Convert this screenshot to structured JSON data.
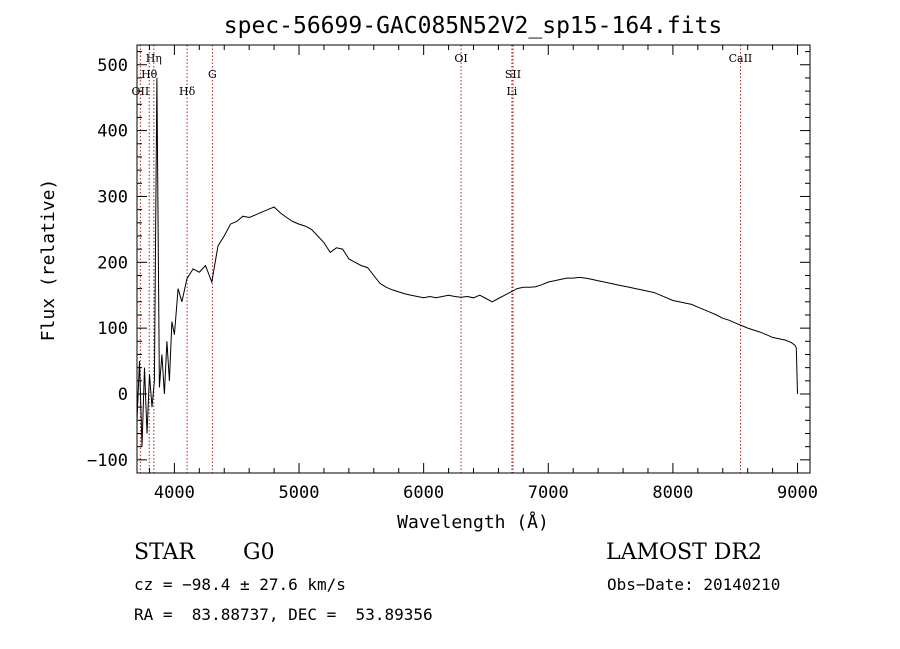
{
  "chart_data": {
    "type": "line",
    "title": "spec-56699-GAC085N52V2_sp15-164.fits",
    "xlabel": "Wavelength (Å)",
    "ylabel": "Flux (relative)",
    "xlim": [
      3700,
      9100
    ],
    "ylim": [
      -120,
      530
    ],
    "xticks": [
      4000,
      5000,
      6000,
      7000,
      8000,
      9000
    ],
    "xtick_labels": [
      "4000",
      "5000",
      "6000",
      "7000",
      "8000",
      "9000"
    ],
    "yticks": [
      -100,
      0,
      100,
      200,
      300,
      400,
      500
    ],
    "ytick_labels": [
      "−100",
      "0",
      "100",
      "200",
      "300",
      "400",
      "500"
    ],
    "grid": false,
    "line_color": "#000000",
    "marker_color": "#b22222",
    "series": [
      {
        "x": [
          3700,
          3720,
          3740,
          3760,
          3780,
          3800,
          3820,
          3840,
          3860,
          3880,
          3900,
          3920,
          3940,
          3960,
          3980,
          4000,
          4030,
          4060,
          4100,
          4150,
          4200,
          4250,
          4300,
          4350,
          4400,
          4450,
          4500,
          4550,
          4600,
          4650,
          4700,
          4750,
          4800,
          4850,
          4900,
          4950,
          5000,
          5050,
          5100,
          5150,
          5200,
          5250,
          5300,
          5350,
          5400,
          5450,
          5500,
          5550,
          5600,
          5650,
          5700,
          5750,
          5800,
          5850,
          5900,
          5950,
          6000,
          6050,
          6100,
          6150,
          6200,
          6250,
          6300,
          6350,
          6400,
          6450,
          6500,
          6550,
          6600,
          6650,
          6700,
          6750,
          6800,
          6850,
          6900,
          6950,
          7000,
          7050,
          7100,
          7150,
          7200,
          7250,
          7300,
          7350,
          7400,
          7450,
          7500,
          7550,
          7600,
          7650,
          7700,
          7750,
          7800,
          7850,
          7900,
          7950,
          8000,
          8050,
          8100,
          8150,
          8200,
          8250,
          8300,
          8350,
          8400,
          8450,
          8500,
          8550,
          8600,
          8650,
          8700,
          8750,
          8800,
          8850,
          8900,
          8950,
          8980,
          8990,
          9000
        ],
        "y": [
          -40,
          50,
          -80,
          40,
          -60,
          30,
          -20,
          20,
          480,
          10,
          60,
          0,
          80,
          20,
          110,
          90,
          160,
          140,
          175,
          190,
          185,
          195,
          170,
          225,
          240,
          258,
          262,
          270,
          268,
          272,
          276,
          280,
          284,
          275,
          268,
          262,
          258,
          255,
          250,
          240,
          230,
          215,
          222,
          220,
          205,
          200,
          195,
          192,
          180,
          168,
          162,
          158,
          155,
          152,
          150,
          148,
          146,
          148,
          146,
          148,
          150,
          148,
          147,
          148,
          146,
          150,
          145,
          140,
          145,
          150,
          155,
          160,
          162,
          162,
          163,
          166,
          170,
          172,
          174,
          176,
          176,
          177,
          176,
          174,
          172,
          170,
          168,
          166,
          164,
          162,
          160,
          158,
          156,
          154,
          150,
          146,
          142,
          140,
          138,
          136,
          132,
          128,
          124,
          120,
          115,
          112,
          108,
          104,
          100,
          97,
          94,
          90,
          86,
          84,
          82,
          78,
          74,
          70,
          0
        ]
      }
    ],
    "lines": [
      {
        "label": "OII",
        "x": 3727,
        "row": 3
      },
      {
        "label": "Hθ",
        "x": 3798,
        "row": 2
      },
      {
        "label": "Hη",
        "x": 3835,
        "row": 1
      },
      {
        "label": "Hδ",
        "x": 4102,
        "row": 3
      },
      {
        "label": "G",
        "x": 4305,
        "row": 2
      },
      {
        "label": "OI",
        "x": 6300,
        "row": 1
      },
      {
        "label": "SII",
        "x": 6717,
        "row": 2
      },
      {
        "label": "Li",
        "x": 6708,
        "row": 3
      },
      {
        "label": "CaII",
        "x": 8542,
        "row": 1
      }
    ]
  },
  "info": {
    "object_class": "STAR",
    "subclass": "G0",
    "survey": "LAMOST DR2",
    "cz": "cz = −98.4 ± 27.6 km/s",
    "obs_date": "Obs−Date: 20140210",
    "coords": "RA =  83.88737, DEC =  53.89356"
  }
}
